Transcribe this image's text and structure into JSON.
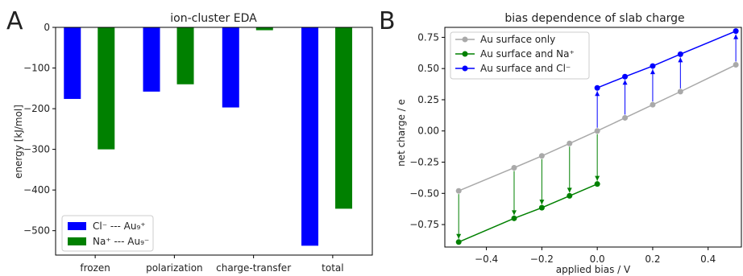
{
  "chart_data": [
    {
      "panel_letter": "A",
      "type": "bar",
      "title": "ion-cluster EDA",
      "xlabel": "",
      "ylabel": "energy [kJ/mol]",
      "ylim": [
        -560,
        0
      ],
      "yticks": [
        0,
        -100,
        -200,
        -300,
        -400,
        -500
      ],
      "ytick_labels": [
        "0",
        "−100",
        "−200",
        "−300",
        "−400",
        "−500"
      ],
      "categories": [
        "frozen",
        "polarization",
        "charge-transfer",
        "total"
      ],
      "series": [
        {
          "name": "Cl⁻ --- Au₉⁺",
          "color": "#0000ff",
          "values": [
            -176,
            -158,
            -197,
            -537
          ]
        },
        {
          "name": "Na⁺ --- Au₉⁻",
          "color": "#008000",
          "values": [
            -300,
            -140,
            -7,
            -446
          ]
        }
      ],
      "legend_position": "lower-left",
      "grid": false
    },
    {
      "panel_letter": "B",
      "type": "line",
      "title": "bias dependence of slab charge",
      "xlabel": "applied bias / V",
      "ylabel": "net charge / e",
      "xlim": [
        -0.55,
        0.52
      ],
      "ylim": [
        -0.93,
        0.83
      ],
      "xticks": [
        -0.4,
        -0.2,
        0.0,
        0.2,
        0.4
      ],
      "xtick_labels": [
        "−0.4",
        "−0.2",
        "0.0",
        "0.2",
        "0.4"
      ],
      "yticks": [
        0.75,
        0.5,
        0.25,
        0.0,
        -0.25,
        -0.5,
        -0.75
      ],
      "ytick_labels": [
        "0.75",
        "0.50",
        "0.25",
        "0.00",
        "−0.25",
        "−0.50",
        "−0.75"
      ],
      "series": [
        {
          "name": "Au surface only",
          "color": "#a9a9a9",
          "x": [
            -0.5,
            -0.3,
            -0.2,
            -0.1,
            0.0,
            0.1,
            0.2,
            0.3,
            0.5
          ],
          "y": [
            -0.48,
            -0.295,
            -0.2,
            -0.1,
            0.0,
            0.105,
            0.21,
            0.315,
            0.53
          ]
        },
        {
          "name": "Au surface and Na⁺",
          "color": "#008000",
          "x": [
            -0.5,
            -0.3,
            -0.2,
            -0.1,
            0.0
          ],
          "y": [
            -0.89,
            -0.7,
            -0.615,
            -0.52,
            -0.425
          ]
        },
        {
          "name": "Au surface and Cl⁻",
          "color": "#0000ff",
          "x": [
            0.0,
            0.1,
            0.2,
            0.3,
            0.5
          ],
          "y": [
            0.345,
            0.435,
            0.52,
            0.615,
            0.8
          ]
        }
      ],
      "legend_position": "upper-left",
      "grid": false
    }
  ]
}
